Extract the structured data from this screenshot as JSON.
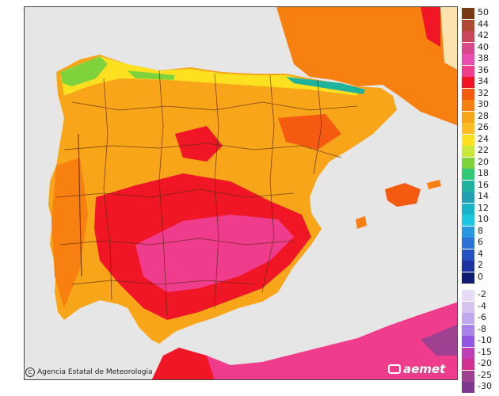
{
  "credit": {
    "icon": "copyright-icon",
    "text": "Agencia Estatal de Meteorología"
  },
  "logo": {
    "text": "aemet"
  },
  "legend": {
    "title": "",
    "positive": [
      {
        "label": "50",
        "color": "#7a3b14"
      },
      {
        "label": "44",
        "color": "#b04a32"
      },
      {
        "label": "42",
        "color": "#c9475a"
      },
      {
        "label": "40",
        "color": "#d94a8a"
      },
      {
        "label": "38",
        "color": "#e84fb0"
      },
      {
        "label": "36",
        "color": "#f03c8c"
      },
      {
        "label": "34",
        "color": "#f01626"
      },
      {
        "label": "32",
        "color": "#f45a10"
      },
      {
        "label": "30",
        "color": "#f78010"
      },
      {
        "label": "28",
        "color": "#f9a51a"
      },
      {
        "label": "26",
        "color": "#fbbd22"
      },
      {
        "label": "24",
        "color": "#fde020"
      },
      {
        "label": "22",
        "color": "#c8e83a"
      },
      {
        "label": "20",
        "color": "#7fd23c"
      },
      {
        "label": "18",
        "color": "#32c878"
      },
      {
        "label": "16",
        "color": "#20b29c"
      },
      {
        "label": "14",
        "color": "#20a0b0"
      },
      {
        "label": "12",
        "color": "#18b4c8"
      },
      {
        "label": "10",
        "color": "#1cc8e0"
      },
      {
        "label": "8",
        "color": "#2a98e0"
      },
      {
        "label": "6",
        "color": "#2a74d8"
      },
      {
        "label": "4",
        "color": "#2452c0"
      },
      {
        "label": "2",
        "color": "#1c34a0"
      },
      {
        "label": "0",
        "color": "#101c70"
      }
    ],
    "negative": [
      {
        "label": "-2",
        "color": "#e6dcf5"
      },
      {
        "label": "-4",
        "color": "#d6c4f0"
      },
      {
        "label": "-6",
        "color": "#c0a8ec"
      },
      {
        "label": "-8",
        "color": "#a884e8"
      },
      {
        "label": "-10",
        "color": "#9058e4"
      },
      {
        "label": "-15",
        "color": "#c040b8"
      },
      {
        "label": "-20",
        "color": "#d03090"
      },
      {
        "label": "-25",
        "color": "#a04090"
      },
      {
        "label": "-30",
        "color": "#7c3a8c"
      }
    ]
  },
  "map": {
    "sea_color": "#e6e6e6",
    "land_colors": {
      "base": "#f9a51a",
      "warm": "#f78010",
      "hot": "#f01626",
      "very_hot": "#f03c8c",
      "mild": "#fde020",
      "cool": "#7fd23c",
      "cold": "#20b29c"
    },
    "regions": [
      "Iberian Peninsula",
      "France (south)",
      "Balearic Islands",
      "North Africa"
    ]
  }
}
